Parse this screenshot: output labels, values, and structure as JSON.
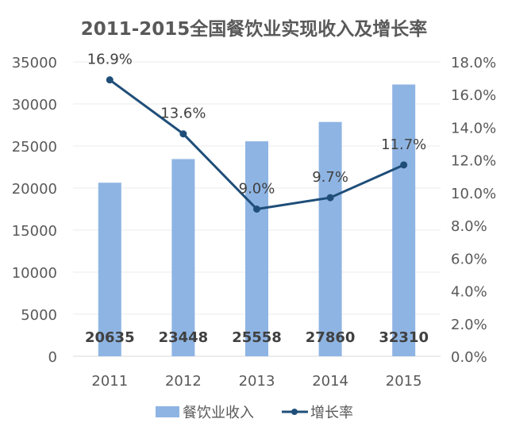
{
  "chart_data": {
    "type": "bar+line",
    "title": "2011-2015全国餐饮业实现收入及增长率",
    "categories": [
      "2011",
      "2012",
      "2013",
      "2014",
      "2015"
    ],
    "series": [
      {
        "name": "餐饮业收入",
        "type": "bar",
        "axis": "left",
        "values": [
          20635,
          23448,
          25558,
          27860,
          32310
        ],
        "labels": [
          "20635",
          "23448",
          "25558",
          "27860",
          "32310"
        ],
        "color": "#8EB4E3"
      },
      {
        "name": "增长率",
        "type": "line",
        "axis": "right",
        "values": [
          16.9,
          13.6,
          9.0,
          9.7,
          11.7
        ],
        "labels": [
          "16.9%",
          "13.6%",
          "9.0%",
          "9.7%",
          "11.7%"
        ],
        "color": "#1F4E79"
      }
    ],
    "left_axis": {
      "ylim": [
        0,
        35000
      ],
      "ticks": [
        "0",
        "5000",
        "10000",
        "15000",
        "20000",
        "25000",
        "30000",
        "35000"
      ]
    },
    "right_axis": {
      "ylim": [
        0,
        18
      ],
      "ticks": [
        "0.0%",
        "2.0%",
        "4.0%",
        "6.0%",
        "8.0%",
        "10.0%",
        "12.0%",
        "14.0%",
        "16.0%",
        "18.0%"
      ]
    },
    "grid": true,
    "legend": "bottom"
  }
}
